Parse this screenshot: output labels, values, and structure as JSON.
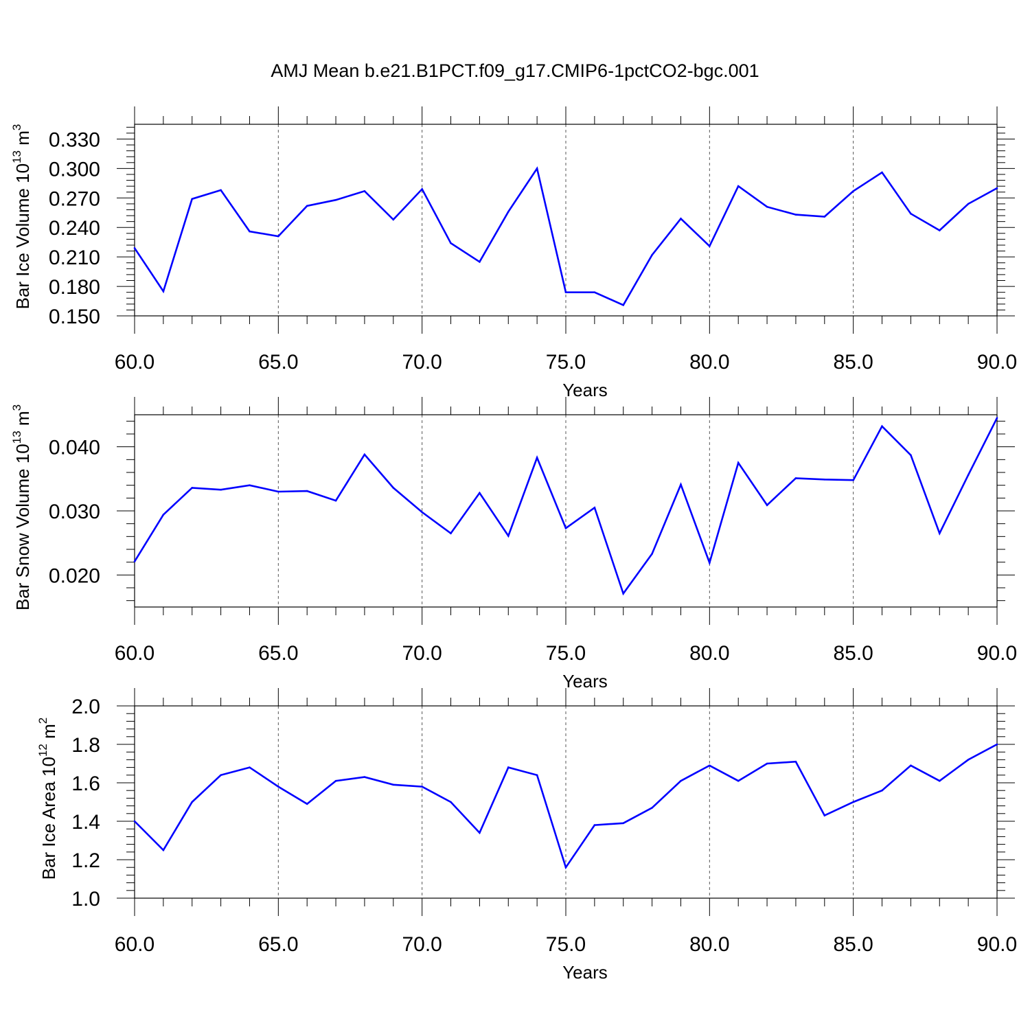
{
  "title": "AMJ Mean b.e21.B1PCT.f09_g17.CMIP6-1pctCO2-bgc.001",
  "chart_data": [
    {
      "type": "line",
      "ylabel": "Bar Ice Volume 10",
      "ylabel_sup": "13",
      "ylabel_unit": "m",
      "ylabel_unit_sup": "3",
      "xlabel": "Years",
      "xlim": [
        60,
        90
      ],
      "ylim": [
        0.15,
        0.345
      ],
      "xticks": [
        60,
        65,
        70,
        75,
        80,
        85,
        90
      ],
      "xtick_labels": [
        "60.0",
        "65.0",
        "70.0",
        "75.0",
        "80.0",
        "85.0",
        "90.0"
      ],
      "yticks": [
        0.15,
        0.18,
        0.21,
        0.24,
        0.27,
        0.3,
        0.33
      ],
      "ytick_labels": [
        "0.150",
        "0.180",
        "0.210",
        "0.240",
        "0.270",
        "0.300",
        "0.330"
      ],
      "grid": "vertical-dashed",
      "line_color": "#0000ff",
      "x": [
        60,
        61,
        62,
        63,
        64,
        65,
        66,
        67,
        68,
        69,
        70,
        71,
        72,
        73,
        74,
        75,
        76,
        77,
        78,
        79,
        80,
        81,
        82,
        83,
        84,
        85,
        86,
        87,
        88,
        89,
        90
      ],
      "y": [
        0.219,
        0.175,
        0.269,
        0.278,
        0.236,
        0.231,
        0.262,
        0.268,
        0.277,
        0.248,
        0.279,
        0.224,
        0.205,
        0.256,
        0.3,
        0.174,
        0.174,
        0.161,
        0.212,
        0.249,
        0.221,
        0.282,
        0.261,
        0.253,
        0.251,
        0.277,
        0.296,
        0.254,
        0.237,
        0.264,
        0.28
      ]
    },
    {
      "type": "line",
      "ylabel": "Bar Snow Volume 10",
      "ylabel_sup": "13",
      "ylabel_unit": "m",
      "ylabel_unit_sup": "3",
      "xlabel": "Years",
      "xlim": [
        60,
        90
      ],
      "ylim": [
        0.015,
        0.045
      ],
      "xticks": [
        60,
        65,
        70,
        75,
        80,
        85,
        90
      ],
      "xtick_labels": [
        "60.0",
        "65.0",
        "70.0",
        "75.0",
        "80.0",
        "85.0",
        "90.0"
      ],
      "yticks": [
        0.02,
        0.03,
        0.04
      ],
      "ytick_labels": [
        "0.020",
        "0.030",
        "0.040"
      ],
      "grid": "vertical-dashed",
      "line_color": "#0000ff",
      "x": [
        60,
        61,
        62,
        63,
        64,
        65,
        66,
        67,
        68,
        69,
        70,
        71,
        72,
        73,
        74,
        75,
        76,
        77,
        78,
        79,
        80,
        81,
        82,
        83,
        84,
        85,
        86,
        87,
        88,
        89,
        90
      ],
      "y": [
        0.0221,
        0.0294,
        0.0336,
        0.0333,
        0.034,
        0.033,
        0.0331,
        0.0316,
        0.0388,
        0.0336,
        0.0298,
        0.0265,
        0.0328,
        0.0261,
        0.0383,
        0.0273,
        0.0305,
        0.0171,
        0.0233,
        0.0341,
        0.0219,
        0.0375,
        0.0309,
        0.0351,
        0.0349,
        0.0348,
        0.0432,
        0.0387,
        0.0265,
        0.0356,
        0.0445
      ]
    },
    {
      "type": "line",
      "ylabel": "Bar Ice Area 10",
      "ylabel_sup": "12",
      "ylabel_unit": "m",
      "ylabel_unit_sup": "2",
      "xlabel": "Years",
      "xlim": [
        60,
        90
      ],
      "ylim": [
        1.0,
        2.0
      ],
      "xticks": [
        60,
        65,
        70,
        75,
        80,
        85,
        90
      ],
      "xtick_labels": [
        "60.0",
        "65.0",
        "70.0",
        "75.0",
        "80.0",
        "85.0",
        "90.0"
      ],
      "yticks": [
        1.0,
        1.2,
        1.4,
        1.6,
        1.8,
        2.0
      ],
      "ytick_labels": [
        "1.0",
        "1.2",
        "1.4",
        "1.6",
        "1.8",
        "2.0"
      ],
      "grid": "vertical-dashed",
      "line_color": "#0000ff",
      "x": [
        60,
        61,
        62,
        63,
        64,
        65,
        66,
        67,
        68,
        69,
        70,
        71,
        72,
        73,
        74,
        75,
        76,
        77,
        78,
        79,
        80,
        81,
        82,
        83,
        84,
        85,
        86,
        87,
        88,
        89,
        90
      ],
      "y": [
        1.4,
        1.25,
        1.5,
        1.64,
        1.68,
        1.58,
        1.49,
        1.61,
        1.63,
        1.59,
        1.58,
        1.5,
        1.34,
        1.68,
        1.64,
        1.16,
        1.38,
        1.39,
        1.47,
        1.61,
        1.69,
        1.61,
        1.7,
        1.71,
        1.43,
        1.5,
        1.56,
        1.69,
        1.61,
        1.72,
        1.8
      ]
    }
  ]
}
